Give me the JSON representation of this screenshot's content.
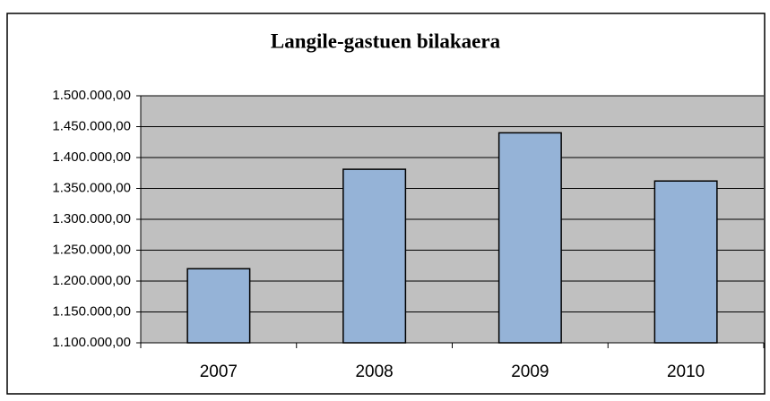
{
  "chart_data": {
    "type": "bar",
    "title": "Langile-gastuen bilakaera",
    "categories": [
      "2007",
      "2008",
      "2009",
      "2010"
    ],
    "values": [
      1220000,
      1381000,
      1440000,
      1362000
    ],
    "color": "#95b3d7",
    "ylim": [
      1100000,
      1500000
    ],
    "yticks": [
      {
        "value": 1100000,
        "label": "1.100.000,00"
      },
      {
        "value": 1150000,
        "label": "1.150.000,00"
      },
      {
        "value": 1200000,
        "label": "1.200.000,00"
      },
      {
        "value": 1250000,
        "label": "1.250.000,00"
      },
      {
        "value": 1300000,
        "label": "1.300.000,00"
      },
      {
        "value": 1350000,
        "label": "1.350.000,00"
      },
      {
        "value": 1400000,
        "label": "1.400.000,00"
      },
      {
        "value": 1450000,
        "label": "1.450.000,00"
      },
      {
        "value": 1500000,
        "label": "1.500.000,00"
      }
    ],
    "grid": true
  }
}
